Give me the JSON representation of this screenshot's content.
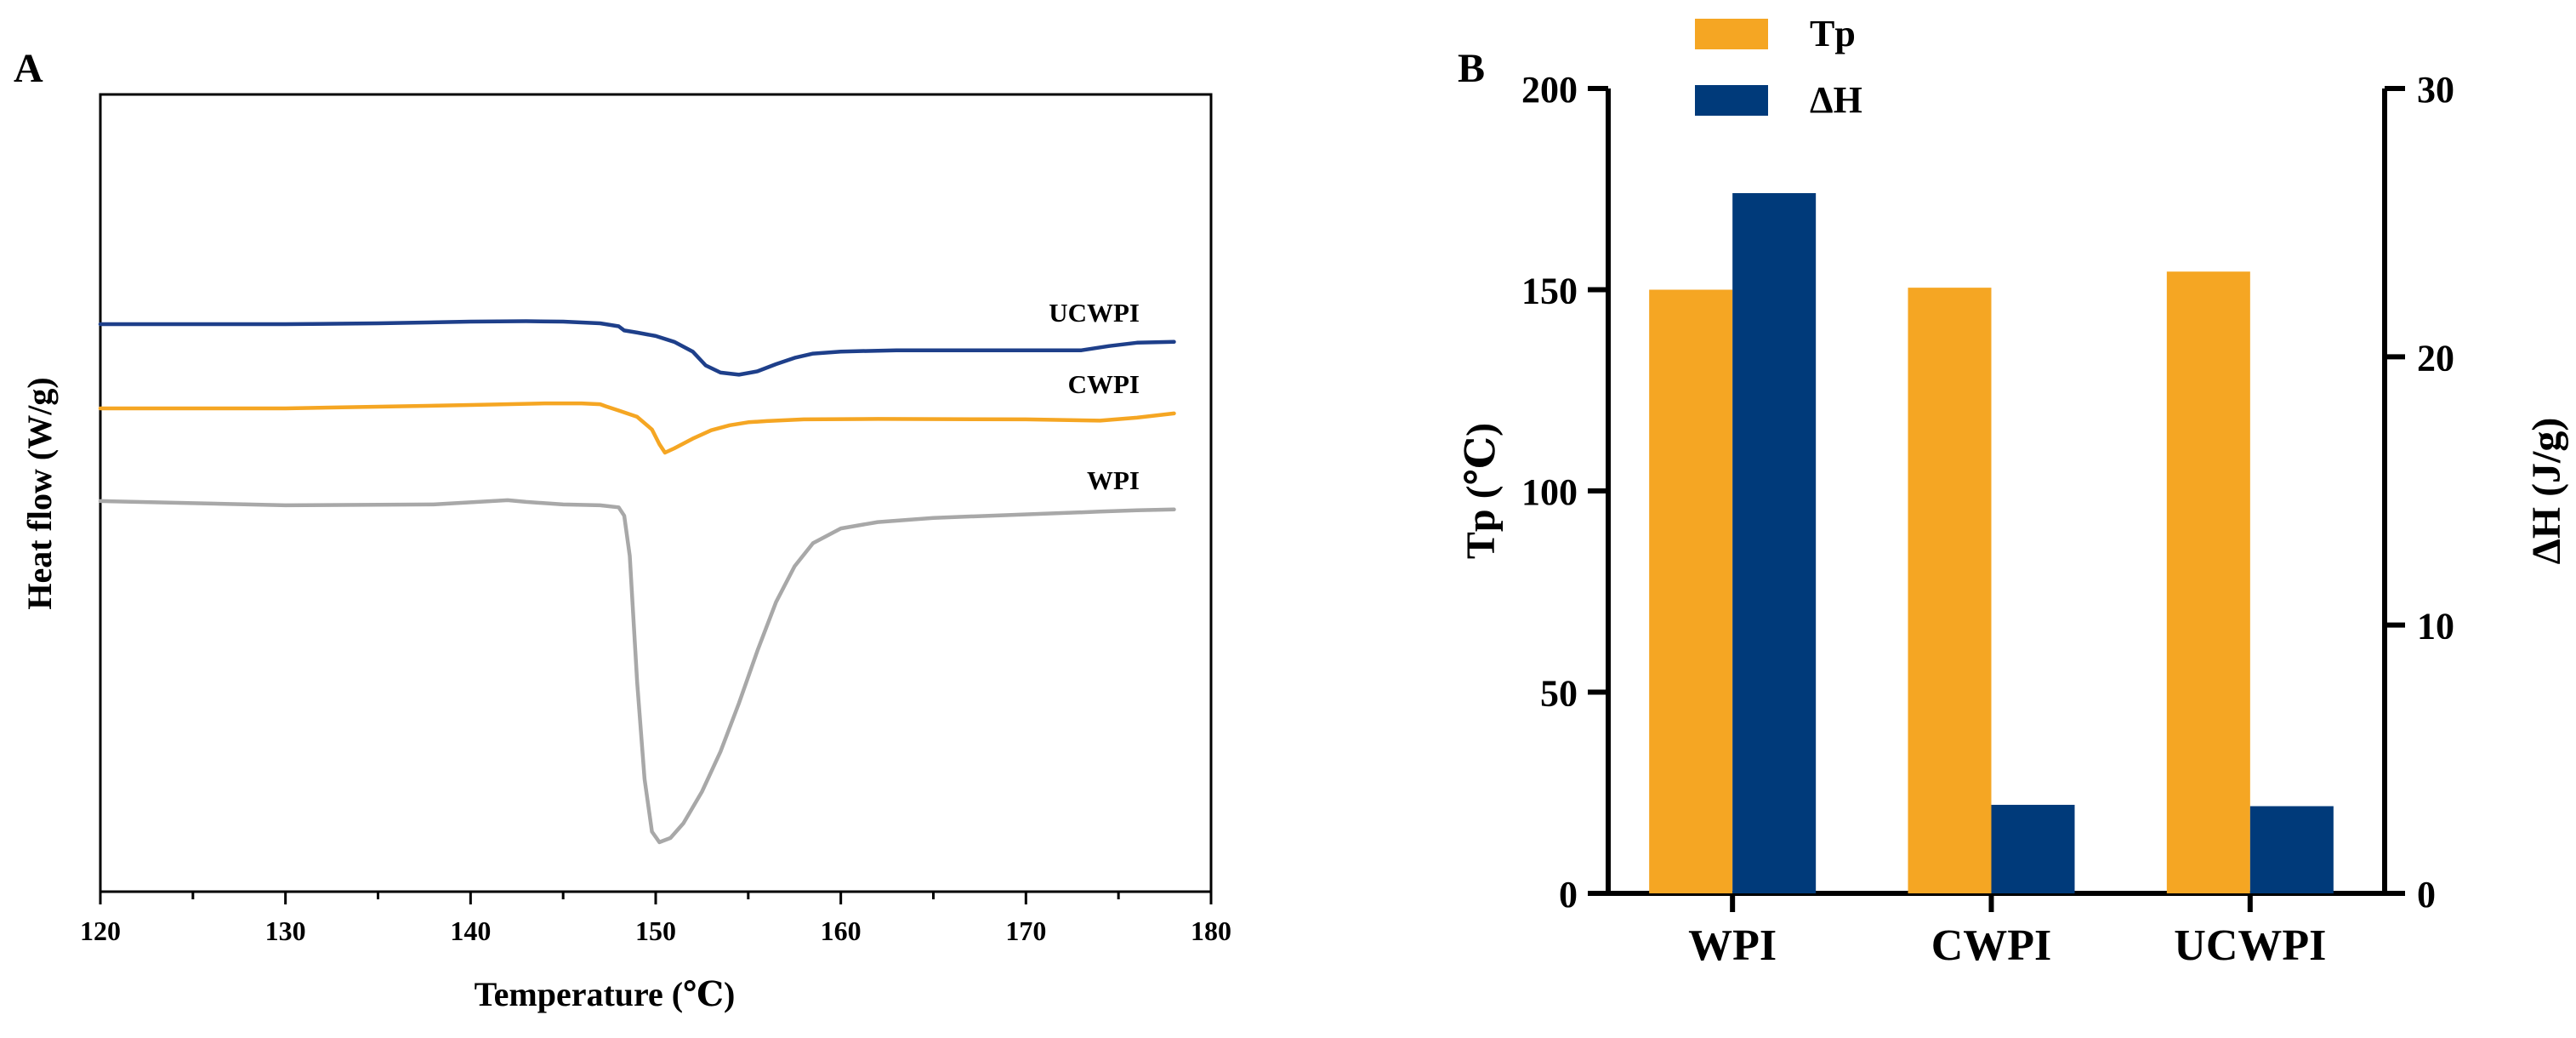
{
  "colors": {
    "ucwpi_line": "#1e3f8a",
    "cwpi_line": "#f5a623",
    "wpi_line": "#a8a8a8",
    "tp_bar": "#f5a623",
    "dh_bar": "#003a7a"
  },
  "panels": [
    {
      "letter": "A"
    },
    {
      "letter": "B"
    }
  ],
  "chart_data": [
    {
      "type": "line",
      "panel": "A",
      "xlabel": "Temperature (℃)",
      "ylabel": "Heat flow (W/g)",
      "xlim": [
        120,
        180
      ],
      "xticks": [
        "120",
        "130",
        "140",
        "150",
        "160",
        "170",
        "180"
      ],
      "yaxis_ticks_shown": false,
      "series": [
        {
          "name": "UCWPI",
          "x": [
            120,
            125,
            130,
            135,
            140,
            143,
            145,
            147,
            148,
            148.3,
            149,
            150,
            151,
            152,
            152.7,
            153.5,
            154.5,
            155.5,
            156.5,
            157.5,
            158.5,
            160,
            163,
            167,
            170,
            173,
            174.5,
            176,
            178
          ],
          "y": [
            2.0,
            2.0,
            2.0,
            2.02,
            2.06,
            2.07,
            2.06,
            2.02,
            1.95,
            1.85,
            1.8,
            1.72,
            1.58,
            1.35,
            1.02,
            0.85,
            0.8,
            0.88,
            1.05,
            1.2,
            1.3,
            1.35,
            1.38,
            1.38,
            1.38,
            1.38,
            1.48,
            1.56,
            1.58
          ]
        },
        {
          "name": "CWPI",
          "x": [
            120,
            130,
            140,
            144,
            146,
            147,
            147.3,
            148,
            149,
            149.8,
            150.2,
            150.5,
            151,
            152,
            153,
            154,
            155,
            156,
            158,
            162,
            170,
            174,
            176,
            178
          ],
          "y": [
            0.0,
            0.0,
            0.08,
            0.12,
            0.12,
            0.1,
            0.05,
            -0.05,
            -0.2,
            -0.5,
            -0.85,
            -1.05,
            -0.95,
            -0.72,
            -0.52,
            -0.4,
            -0.33,
            -0.3,
            -0.26,
            -0.25,
            -0.26,
            -0.29,
            -0.22,
            -0.12
          ]
        },
        {
          "name": "WPI",
          "x": [
            120,
            130,
            138,
            142,
            143,
            145,
            147,
            148,
            148.3,
            148.6,
            149,
            149.4,
            149.8,
            150.2,
            150.8,
            151.5,
            152.5,
            153.5,
            154.5,
            155.5,
            156.5,
            157.5,
            158.5,
            160,
            162,
            165,
            168,
            171,
            174,
            176,
            178
          ],
          "y": [
            -2.2,
            -2.3,
            -2.28,
            -2.18,
            -2.22,
            -2.28,
            -2.3,
            -2.35,
            -2.55,
            -3.5,
            -6.5,
            -8.8,
            -10.05,
            -10.3,
            -10.2,
            -9.85,
            -9.1,
            -8.15,
            -7.0,
            -5.75,
            -4.6,
            -3.75,
            -3.2,
            -2.85,
            -2.7,
            -2.6,
            -2.55,
            -2.5,
            -2.45,
            -2.42,
            -2.4
          ]
        }
      ]
    },
    {
      "type": "bar",
      "panel": "B",
      "categories": [
        "WPI",
        "CWPI",
        "UCWPI"
      ],
      "ylabel": "Tp (℃)",
      "ylabel_right": "ΔH (J/g)",
      "ylim": [
        0,
        200
      ],
      "ylim_right": [
        0,
        30
      ],
      "yticks": [
        "0",
        "50",
        "100",
        "150",
        "200"
      ],
      "yticks_right": [
        "0",
        "10",
        "20",
        "30"
      ],
      "legend_position": "top-left",
      "series": [
        {
          "name": "Tp",
          "axis": "left",
          "values": [
            150,
            150.5,
            154.5
          ]
        },
        {
          "name": "ΔH",
          "axis": "right",
          "values": [
            26.1,
            3.3,
            3.25
          ]
        }
      ]
    }
  ]
}
